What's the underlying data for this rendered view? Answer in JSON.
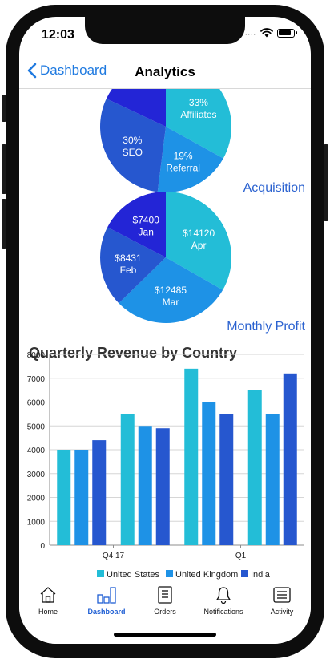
{
  "status_bar": {
    "time": "12:03",
    "signal": "....",
    "wifi_icon": "wifi-icon",
    "battery_icon": "battery-icon"
  },
  "nav": {
    "back_label": "Dashboard",
    "title": "Analytics"
  },
  "colors": {
    "accent": "#1f7ae0",
    "cyan": "#23bdd7",
    "blue": "#1e92e6",
    "indigo": "#2657cf",
    "navy": "#2325d6",
    "label_blue": "#2b62d0"
  },
  "chart_data": [
    {
      "type": "pie",
      "title": "Acquisition",
      "slices": [
        {
          "label": "Affiliates",
          "percent": 33,
          "text": "33%",
          "color": "#23bdd7"
        },
        {
          "label": "Referral",
          "percent": 19,
          "text": "19%",
          "color": "#1e92e6"
        },
        {
          "label": "SEO",
          "percent": 30,
          "text": "30%",
          "color": "#2657cf"
        },
        {
          "label": "",
          "percent": 18,
          "text": "",
          "color": "#2325d6"
        }
      ]
    },
    {
      "type": "pie",
      "title": "Monthly Profit",
      "slices": [
        {
          "label": "Apr",
          "value": 14120,
          "text": "$14120",
          "color": "#23bdd7"
        },
        {
          "label": "Mar",
          "value": 12485,
          "text": "$12485",
          "color": "#1e92e6"
        },
        {
          "label": "Feb",
          "value": 8431,
          "text": "$8431",
          "color": "#2657cf"
        },
        {
          "label": "Jan",
          "value": 7400,
          "text": "$7400",
          "color": "#2325d6"
        }
      ]
    },
    {
      "type": "bar",
      "title": "Quarterly Revenue by Country",
      "x_tick_labels": [
        "Q4 17",
        "Q1"
      ],
      "categories": [
        "g1",
        "g2",
        "g3",
        "g4"
      ],
      "ylim": [
        0,
        8000
      ],
      "y_ticks": [
        0,
        1000,
        2000,
        3000,
        4000,
        5000,
        6000,
        7000,
        8000
      ],
      "grid": true,
      "legend_position": "bottom",
      "series": [
        {
          "name": "United States",
          "color": "#23bdd7",
          "values": [
            4000,
            5500,
            7400,
            6500
          ]
        },
        {
          "name": "United Kingdom",
          "color": "#1e92e6",
          "values": [
            4000,
            5000,
            6000,
            5500
          ]
        },
        {
          "name": "India",
          "color": "#2657cf",
          "values": [
            4400,
            4900,
            5500,
            7200
          ]
        }
      ]
    }
  ],
  "tabs": [
    {
      "label": "Home",
      "icon": "home-icon",
      "active": false
    },
    {
      "label": "Dashboard",
      "icon": "bar-chart-icon",
      "active": true
    },
    {
      "label": "Orders",
      "icon": "orders-list-icon",
      "active": false
    },
    {
      "label": "Notifications",
      "icon": "bell-icon",
      "active": false
    },
    {
      "label": "Activity",
      "icon": "activity-list-icon",
      "active": false
    }
  ]
}
